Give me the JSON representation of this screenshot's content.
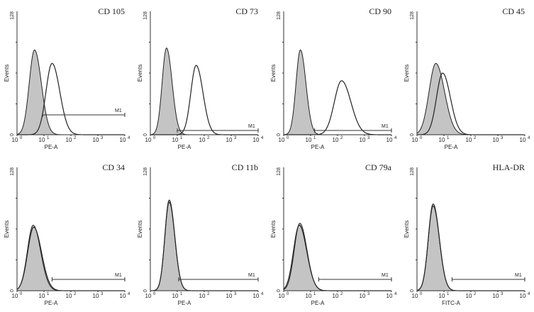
{
  "chart_data": {
    "type": "histogram",
    "y_axis": {
      "label": "Events",
      "min_label": "0",
      "max_label": "128",
      "ylim": [
        0,
        128
      ]
    },
    "x_axis": {
      "scale": "log",
      "xlim_log10": [
        0,
        4
      ],
      "ticks": [
        "10^0",
        "10^1",
        "10^2",
        "10^3",
        "10^4"
      ]
    },
    "marker_label": "M1",
    "colors": {
      "isotype_fill": "#c4c4c4",
      "line": "#222222"
    },
    "panels": [
      {
        "title": "CD 105",
        "xlabel": "PE-A",
        "isotype": {
          "peak_log": 0.65,
          "height": 88,
          "sd": 0.22
        },
        "sample": {
          "peak_log": 1.3,
          "height": 74,
          "sd": 0.25
        },
        "m1": [
          0.95,
          4.0
        ]
      },
      {
        "title": "CD 73",
        "xlabel": "PE-A",
        "isotype": {
          "peak_log": 0.6,
          "height": 90,
          "sd": 0.18
        },
        "sample": {
          "peak_log": 1.7,
          "height": 72,
          "sd": 0.22
        },
        "m1": [
          1.0,
          4.0
        ]
      },
      {
        "title": "CD 90",
        "xlabel": "PE-A",
        "isotype": {
          "peak_log": 0.62,
          "height": 88,
          "sd": 0.18
        },
        "sample": {
          "peak_log": 2.15,
          "height": 56,
          "sd": 0.3
        },
        "m1": [
          1.15,
          4.0
        ]
      },
      {
        "title": "CD 45",
        "xlabel": "PE-A",
        "isotype": {
          "peak_log": 0.7,
          "height": 74,
          "sd": 0.28
        },
        "sample": {
          "peak_log": 0.95,
          "height": 64,
          "sd": 0.25
        },
        "m1": null
      },
      {
        "title": "CD 34",
        "xlabel": "PE-A",
        "isotype": {
          "peak_log": 0.6,
          "height": 68,
          "sd": 0.24
        },
        "sample": {
          "peak_log": 0.62,
          "height": 66,
          "sd": 0.25
        },
        "m1": [
          1.3,
          4.0
        ]
      },
      {
        "title": "CD 11b",
        "xlabel": "PE-A",
        "isotype": {
          "peak_log": 0.7,
          "height": 92,
          "sd": 0.18
        },
        "sample": {
          "peak_log": 0.7,
          "height": 94,
          "sd": 0.18
        },
        "m1": [
          1.05,
          4.0
        ]
      },
      {
        "title": "CD 79a",
        "xlabel": "PE-A",
        "isotype": {
          "peak_log": 0.6,
          "height": 70,
          "sd": 0.23
        },
        "sample": {
          "peak_log": 0.58,
          "height": 68,
          "sd": 0.24
        },
        "m1": [
          1.3,
          4.0
        ]
      },
      {
        "title": "HLA-DR",
        "xlabel": "FITC-A",
        "isotype": {
          "peak_log": 0.6,
          "height": 88,
          "sd": 0.2
        },
        "sample": {
          "peak_log": 0.6,
          "height": 90,
          "sd": 0.2
        },
        "m1": [
          1.3,
          4.0
        ]
      }
    ]
  }
}
